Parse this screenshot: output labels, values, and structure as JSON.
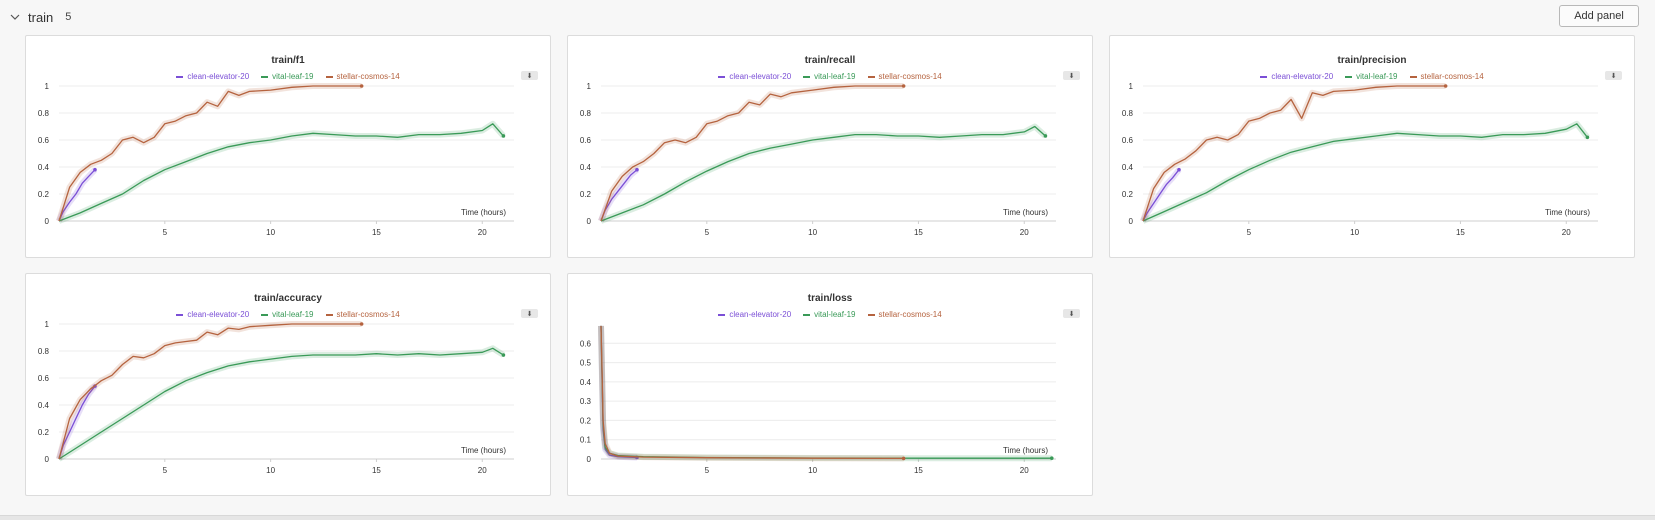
{
  "section": {
    "title": "train",
    "count": "5",
    "add_panel_label": "Add panel"
  },
  "colors": {
    "clean": "#7b4fd6",
    "vital": "#3a9a58",
    "stellar": "#b5633f"
  },
  "panels": [
    {
      "title": "train/f1",
      "legend": [
        "clean-elevator-20",
        "vital-leaf-19",
        "stellar-cosmos-14"
      ],
      "xlabel": "Time (hours)"
    },
    {
      "title": "train/recall",
      "legend": [
        "clean-elevator-20",
        "vital-leaf-19",
        "stellar-cosmos-14"
      ],
      "xlabel": "Time (hours)"
    },
    {
      "title": "train/precision",
      "legend": [
        "clean-elevator-20",
        "vital-leaf-19",
        "stellar-cosmos-14"
      ],
      "xlabel": "Time (hours)"
    },
    {
      "title": "train/accuracy",
      "legend": [
        "clean-elevator-20",
        "vital-leaf-19",
        "stellar-cosmos-14"
      ],
      "xlabel": "Time (hours)"
    },
    {
      "title": "train/loss",
      "legend": [
        "clean-elevator-20",
        "vital-leaf-19",
        "stellar-cosmos-14"
      ],
      "xlabel": "Time (hours)"
    }
  ],
  "chart_data": [
    {
      "type": "line",
      "title": "train/f1",
      "xlabel": "Time (hours)",
      "ylabel": "",
      "xlim": [
        0,
        21.5
      ],
      "ylim": [
        0,
        1
      ],
      "x_ticks": [
        5,
        10,
        15,
        20
      ],
      "y_ticks": [
        0,
        0.2,
        0.4,
        0.6,
        0.8,
        1
      ],
      "series": [
        {
          "name": "clean-elevator-20",
          "x": [
            0,
            0.2,
            0.5,
            0.8,
            1.1,
            1.4,
            1.7
          ],
          "y": [
            0,
            0.07,
            0.14,
            0.2,
            0.28,
            0.33,
            0.38
          ]
        },
        {
          "name": "vital-leaf-19",
          "x": [
            0,
            1,
            2,
            3,
            4,
            5,
            6,
            7,
            8,
            9,
            10,
            11,
            12,
            13,
            14,
            15,
            16,
            17,
            18,
            19,
            20,
            20.5,
            21
          ],
          "y": [
            0,
            0.06,
            0.13,
            0.2,
            0.3,
            0.38,
            0.44,
            0.5,
            0.55,
            0.58,
            0.6,
            0.63,
            0.65,
            0.64,
            0.63,
            0.63,
            0.62,
            0.64,
            0.64,
            0.65,
            0.67,
            0.72,
            0.63
          ]
        },
        {
          "name": "stellar-cosmos-14",
          "x": [
            0,
            0.5,
            1,
            1.5,
            2,
            2.5,
            3,
            3.5,
            4,
            4.5,
            5,
            5.5,
            6,
            6.5,
            7,
            7.5,
            8,
            8.5,
            9,
            10,
            11,
            12,
            13,
            14.3
          ],
          "y": [
            0,
            0.25,
            0.36,
            0.42,
            0.45,
            0.5,
            0.6,
            0.62,
            0.58,
            0.62,
            0.72,
            0.74,
            0.78,
            0.8,
            0.88,
            0.85,
            0.96,
            0.93,
            0.96,
            0.97,
            0.99,
            1,
            1,
            1
          ]
        }
      ]
    },
    {
      "type": "line",
      "title": "train/recall",
      "xlabel": "Time (hours)",
      "ylabel": "",
      "xlim": [
        0,
        21.5
      ],
      "ylim": [
        0,
        1
      ],
      "x_ticks": [
        5,
        10,
        15,
        20
      ],
      "y_ticks": [
        0,
        0.2,
        0.4,
        0.6,
        0.8,
        1
      ],
      "series": [
        {
          "name": "clean-elevator-20",
          "x": [
            0,
            0.2,
            0.5,
            0.8,
            1.1,
            1.4,
            1.7
          ],
          "y": [
            0,
            0.08,
            0.16,
            0.22,
            0.28,
            0.34,
            0.38
          ]
        },
        {
          "name": "vital-leaf-19",
          "x": [
            0,
            1,
            2,
            3,
            4,
            5,
            6,
            7,
            8,
            9,
            10,
            11,
            12,
            13,
            14,
            15,
            16,
            17,
            18,
            19,
            20,
            20.5,
            21
          ],
          "y": [
            0,
            0.06,
            0.12,
            0.2,
            0.29,
            0.37,
            0.44,
            0.5,
            0.54,
            0.57,
            0.6,
            0.62,
            0.64,
            0.64,
            0.63,
            0.63,
            0.62,
            0.63,
            0.64,
            0.64,
            0.66,
            0.7,
            0.63
          ]
        },
        {
          "name": "stellar-cosmos-14",
          "x": [
            0,
            0.5,
            1,
            1.5,
            2,
            2.5,
            3,
            3.5,
            4,
            4.5,
            5,
            5.5,
            6,
            6.5,
            7,
            7.5,
            8,
            8.5,
            9,
            10,
            11,
            12,
            13,
            14.3
          ],
          "y": [
            0,
            0.22,
            0.33,
            0.4,
            0.44,
            0.5,
            0.58,
            0.6,
            0.58,
            0.62,
            0.72,
            0.74,
            0.78,
            0.8,
            0.88,
            0.86,
            0.94,
            0.92,
            0.95,
            0.97,
            0.99,
            1,
            1,
            1
          ]
        }
      ]
    },
    {
      "type": "line",
      "title": "train/precision",
      "xlabel": "Time (hours)",
      "ylabel": "",
      "xlim": [
        0,
        21.5
      ],
      "ylim": [
        0,
        1
      ],
      "x_ticks": [
        5,
        10,
        15,
        20
      ],
      "y_ticks": [
        0,
        0.2,
        0.4,
        0.6,
        0.8,
        1
      ],
      "series": [
        {
          "name": "clean-elevator-20",
          "x": [
            0,
            0.2,
            0.5,
            0.8,
            1.1,
            1.4,
            1.7
          ],
          "y": [
            0,
            0.06,
            0.13,
            0.2,
            0.27,
            0.32,
            0.38
          ]
        },
        {
          "name": "vital-leaf-19",
          "x": [
            0,
            1,
            2,
            3,
            4,
            5,
            6,
            7,
            8,
            9,
            10,
            11,
            12,
            13,
            14,
            15,
            16,
            17,
            18,
            19,
            20,
            20.5,
            21
          ],
          "y": [
            0,
            0.07,
            0.14,
            0.21,
            0.3,
            0.38,
            0.45,
            0.51,
            0.55,
            0.59,
            0.61,
            0.63,
            0.65,
            0.64,
            0.63,
            0.63,
            0.62,
            0.64,
            0.64,
            0.65,
            0.68,
            0.72,
            0.62
          ]
        },
        {
          "name": "stellar-cosmos-14",
          "x": [
            0,
            0.5,
            1,
            1.5,
            2,
            2.5,
            3,
            3.5,
            4,
            4.5,
            5,
            5.5,
            6,
            6.5,
            7,
            7.5,
            8,
            8.5,
            9,
            10,
            11,
            12,
            13,
            14.3
          ],
          "y": [
            0,
            0.24,
            0.36,
            0.42,
            0.46,
            0.52,
            0.6,
            0.62,
            0.6,
            0.64,
            0.74,
            0.76,
            0.8,
            0.82,
            0.9,
            0.76,
            0.95,
            0.93,
            0.96,
            0.97,
            0.99,
            1,
            1,
            1
          ]
        }
      ]
    },
    {
      "type": "line",
      "title": "train/accuracy",
      "xlabel": "Time (hours)",
      "ylabel": "",
      "xlim": [
        0,
        21.5
      ],
      "ylim": [
        0,
        1
      ],
      "x_ticks": [
        5,
        10,
        15,
        20
      ],
      "y_ticks": [
        0,
        0.2,
        0.4,
        0.6,
        0.8,
        1
      ],
      "series": [
        {
          "name": "clean-elevator-20",
          "x": [
            0,
            0.2,
            0.5,
            0.8,
            1.1,
            1.4,
            1.7
          ],
          "y": [
            0,
            0.1,
            0.2,
            0.3,
            0.4,
            0.48,
            0.54
          ]
        },
        {
          "name": "vital-leaf-19",
          "x": [
            0,
            1,
            2,
            3,
            4,
            5,
            6,
            7,
            8,
            9,
            10,
            11,
            12,
            13,
            14,
            15,
            16,
            17,
            18,
            19,
            20,
            20.5,
            21
          ],
          "y": [
            0,
            0.1,
            0.2,
            0.3,
            0.4,
            0.5,
            0.58,
            0.64,
            0.69,
            0.72,
            0.74,
            0.76,
            0.77,
            0.77,
            0.77,
            0.78,
            0.77,
            0.78,
            0.77,
            0.78,
            0.79,
            0.82,
            0.77
          ]
        },
        {
          "name": "stellar-cosmos-14",
          "x": [
            0,
            0.5,
            1,
            1.5,
            2,
            2.5,
            3,
            3.5,
            4,
            4.5,
            5,
            5.5,
            6,
            6.5,
            7,
            7.5,
            8,
            8.5,
            9,
            10,
            11,
            12,
            13,
            14.3
          ],
          "y": [
            0,
            0.3,
            0.44,
            0.52,
            0.58,
            0.62,
            0.7,
            0.76,
            0.75,
            0.78,
            0.84,
            0.86,
            0.87,
            0.88,
            0.94,
            0.92,
            0.97,
            0.96,
            0.98,
            0.99,
            1,
            1,
            1,
            1
          ]
        }
      ]
    },
    {
      "type": "line",
      "title": "train/loss",
      "xlabel": "Time (hours)",
      "ylabel": "",
      "xlim": [
        0,
        21.5
      ],
      "ylim": [
        0,
        0.7
      ],
      "x_ticks": [
        5,
        10,
        15,
        20
      ],
      "y_ticks": [
        0,
        0.1,
        0.2,
        0.3,
        0.4,
        0.5,
        0.6
      ],
      "series": [
        {
          "name": "clean-elevator-20",
          "x": [
            0,
            0.05,
            0.1,
            0.2,
            0.4,
            0.8,
            1.2,
            1.7
          ],
          "y": [
            0.69,
            0.4,
            0.15,
            0.05,
            0.02,
            0.012,
            0.01,
            0.008
          ]
        },
        {
          "name": "vital-leaf-19",
          "x": [
            0,
            0.05,
            0.1,
            0.2,
            0.4,
            0.8,
            2,
            5,
            10,
            15,
            20,
            21.3
          ],
          "y": [
            0.69,
            0.42,
            0.18,
            0.06,
            0.03,
            0.018,
            0.012,
            0.008,
            0.005,
            0.004,
            0.004,
            0.004
          ]
        },
        {
          "name": "stellar-cosmos-14",
          "x": [
            0,
            0.05,
            0.1,
            0.2,
            0.4,
            0.8,
            2,
            5,
            10,
            14.3
          ],
          "y": [
            0.69,
            0.45,
            0.2,
            0.08,
            0.03,
            0.015,
            0.01,
            0.007,
            0.004,
            0.003
          ]
        }
      ]
    }
  ]
}
